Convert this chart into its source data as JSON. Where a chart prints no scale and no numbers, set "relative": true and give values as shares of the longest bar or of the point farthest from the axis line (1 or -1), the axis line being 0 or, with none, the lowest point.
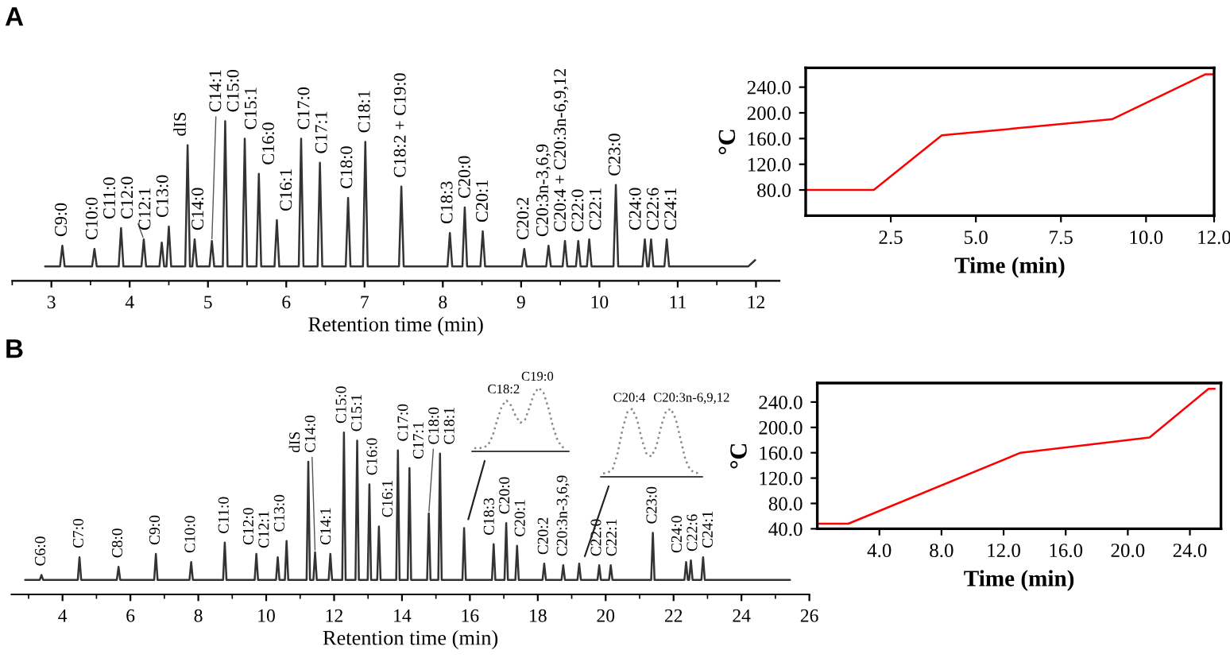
{
  "chart_data": [
    {
      "type": "line",
      "title": "A",
      "xlabel": "Retention time (min)",
      "relative": true,
      "xlim": [
        2.5,
        12.3
      ],
      "xticks": [
        3,
        4,
        5,
        6,
        7,
        8,
        9,
        10,
        11,
        12
      ],
      "tick_labels": "x",
      "grid": false,
      "marker": "none",
      "line_style": "solid",
      "series": [
        {
          "color": "#333333",
          "x": [
            2.92,
            3.11,
            3.14,
            3.17,
            3.52,
            3.55,
            3.58,
            3.86,
            3.89,
            3.92,
            4.15,
            4.18,
            4.21,
            4.38,
            4.41,
            4.44,
            4.47,
            4.5,
            4.53,
            4.71,
            4.74,
            4.77,
            4.8,
            4.83,
            4.86,
            5.02,
            5.05,
            5.08,
            5.19,
            5.22,
            5.25,
            5.44,
            5.47,
            5.5,
            5.62,
            5.65,
            5.68,
            5.85,
            5.88,
            5.91,
            6.16,
            6.19,
            6.22,
            6.4,
            6.43,
            6.46,
            6.76,
            6.79,
            6.82,
            6.98,
            7.01,
            7.04,
            7.44,
            7.47,
            7.5,
            8.06,
            8.09,
            8.12,
            8.25,
            8.28,
            8.31,
            8.48,
            8.51,
            8.54,
            9.01,
            9.04,
            9.07,
            9.32,
            9.35,
            9.38,
            9.53,
            9.56,
            9.59,
            9.7,
            9.73,
            9.76,
            9.84,
            9.87,
            9.9,
            10.18,
            10.21,
            10.24,
            10.55,
            10.58,
            10.61,
            10.63,
            10.66,
            10.69,
            10.83,
            10.86,
            10.89,
            11.9,
            11.99
          ],
          "values": [
            0.09,
            0.09,
            0.22,
            0.09,
            0.09,
            0.2,
            0.09,
            0.09,
            0.33,
            0.09,
            0.09,
            0.26,
            0.09,
            0.09,
            0.24,
            0.09,
            0.09,
            0.34,
            0.09,
            0.09,
            0.85,
            0.09,
            0.09,
            0.26,
            0.09,
            0.09,
            0.25,
            0.09,
            0.09,
            1.0,
            0.09,
            0.09,
            0.89,
            0.09,
            0.09,
            0.67,
            0.09,
            0.09,
            0.38,
            0.09,
            0.09,
            0.89,
            0.09,
            0.09,
            0.74,
            0.09,
            0.09,
            0.52,
            0.09,
            0.09,
            0.87,
            0.09,
            0.09,
            0.59,
            0.09,
            0.09,
            0.3,
            0.09,
            0.09,
            0.46,
            0.09,
            0.09,
            0.31,
            0.09,
            0.09,
            0.2,
            0.09,
            0.09,
            0.22,
            0.09,
            0.09,
            0.25,
            0.09,
            0.09,
            0.25,
            0.09,
            0.09,
            0.26,
            0.09,
            0.09,
            0.6,
            0.09,
            0.09,
            0.26,
            0.09,
            0.09,
            0.26,
            0.09,
            0.09,
            0.26,
            0.09,
            0.09,
            0.13
          ]
        }
      ],
      "annotations": [
        {
          "text": "C9:0",
          "x": 3.14,
          "y": 0.22
        },
        {
          "text": "C10:0",
          "x": 3.55,
          "y": 0.2
        },
        {
          "text": "C11:0",
          "x": 3.89,
          "y": 0.33
        },
        {
          "text": "C12:0",
          "x": 4.18,
          "y": 0.26
        },
        {
          "text": "C12:1",
          "x": 4.41,
          "y": 0.24
        },
        {
          "text": "C13:0",
          "x": 4.5,
          "y": 0.34
        },
        {
          "text": "dIS",
          "x": 4.74,
          "y": 0.85
        },
        {
          "text": "C14:0",
          "x": 4.83,
          "y": 0.26
        },
        {
          "text": "C14:1",
          "x": 5.05,
          "y": 0.25
        },
        {
          "text": "C15:0",
          "x": 5.22,
          "y": 1.0
        },
        {
          "text": "C15:1",
          "x": 5.47,
          "y": 0.89
        },
        {
          "text": "C16:0",
          "x": 5.65,
          "y": 0.67
        },
        {
          "text": "C16:1",
          "x": 5.88,
          "y": 0.38
        },
        {
          "text": "C17:0",
          "x": 6.19,
          "y": 0.89
        },
        {
          "text": "C17:1",
          "x": 6.43,
          "y": 0.74
        },
        {
          "text": "C18:0",
          "x": 6.79,
          "y": 0.52
        },
        {
          "text": "C18:1",
          "x": 7.01,
          "y": 0.87
        },
        {
          "text": "C18:2 + C19:0",
          "x": 7.47,
          "y": 0.59
        },
        {
          "text": "C18:3",
          "x": 8.09,
          "y": 0.3
        },
        {
          "text": "C20:0",
          "x": 8.28,
          "y": 0.46
        },
        {
          "text": "C20:1",
          "x": 8.51,
          "y": 0.31
        },
        {
          "text": "C20:2",
          "x": 9.04,
          "y": 0.2
        },
        {
          "text": "C20:3n-3,6,9",
          "x": 9.35,
          "y": 0.22
        },
        {
          "text": "C20:4 + C20:3n-6,9,12",
          "x": 9.56,
          "y": 0.25
        },
        {
          "text": "C22:0",
          "x": 9.73,
          "y": 0.25
        },
        {
          "text": "C22:1",
          "x": 9.87,
          "y": 0.26
        },
        {
          "text": "C23:0",
          "x": 10.21,
          "y": 0.6
        },
        {
          "text": "C24:0",
          "x": 10.58,
          "y": 0.26
        },
        {
          "text": "C22:6",
          "x": 10.66,
          "y": 0.26
        },
        {
          "text": "C24:1",
          "x": 10.86,
          "y": 0.26
        }
      ]
    },
    {
      "type": "line",
      "xlabel": "Time (min)",
      "ylabel": "°C",
      "xlim": [
        0,
        12
      ],
      "ylim": [
        40,
        270
      ],
      "xticks": [
        {
          "value": 2.5,
          "label": "2.5"
        },
        {
          "value": 5,
          "label": "5.0"
        },
        {
          "value": 7.5,
          "label": "7.5"
        },
        {
          "value": 10,
          "label": "10.0"
        },
        {
          "value": 12,
          "label": "12.0"
        }
      ],
      "yticks": [
        {
          "value": 80,
          "label": "80.0"
        },
        {
          "value": 120,
          "label": "120.0"
        },
        {
          "value": 160,
          "label": "160.0"
        },
        {
          "value": 200,
          "label": "200.0"
        },
        {
          "value": 240,
          "label": "240.0"
        }
      ],
      "grid": false,
      "marker": "none",
      "line_style": "solid",
      "series": [
        {
          "color": "#ff0000",
          "x": [
            0,
            2,
            4,
            9,
            11.75,
            12
          ],
          "values": [
            80,
            80,
            165,
            190,
            260,
            260
          ]
        }
      ]
    },
    {
      "type": "line",
      "title": "B",
      "xlabel": "Retention time (min)",
      "relative": true,
      "xlim": [
        2.5,
        26
      ],
      "xticks": [
        4,
        6,
        8,
        10,
        12,
        14,
        16,
        18,
        20,
        22,
        24,
        26
      ],
      "tick_labels": "x",
      "grid": false,
      "marker": "none",
      "line_style": "solid",
      "series": [
        {
          "color": "#333333",
          "x": [
            2.9,
            3.33,
            3.38,
            3.43,
            4.45,
            4.5,
            4.55,
            5.6,
            5.65,
            5.7,
            6.7,
            6.75,
            6.8,
            7.74,
            7.79,
            7.84,
            8.73,
            8.78,
            8.83,
            9.66,
            9.71,
            9.76,
            10.29,
            10.34,
            10.39,
            10.55,
            10.6,
            10.65,
            11.19,
            11.24,
            11.29,
            11.39,
            11.44,
            11.49,
            11.84,
            11.89,
            11.94,
            12.24,
            12.29,
            12.34,
            12.63,
            12.68,
            12.73,
            12.99,
            13.04,
            13.09,
            13.27,
            13.32,
            13.37,
            13.83,
            13.88,
            13.93,
            14.17,
            14.22,
            14.27,
            14.74,
            14.79,
            14.84,
            15.07,
            15.12,
            15.17,
            15.78,
            15.83,
            15.88,
            16.65,
            16.7,
            16.75,
            17.02,
            17.07,
            17.12,
            17.34,
            17.39,
            17.44,
            18.14,
            18.19,
            18.24,
            18.7,
            18.75,
            18.8,
            19.17,
            19.22,
            19.27,
            19.76,
            19.81,
            19.86,
            20.1,
            20.15,
            20.2,
            21.34,
            21.39,
            21.44,
            22.32,
            22.37,
            22.42,
            22.46,
            22.51,
            22.56,
            22.82,
            22.87,
            22.92,
            25.43
          ],
          "values": [
            0.09,
            0.09,
            0.12,
            0.09,
            0.09,
            0.23,
            0.09,
            0.09,
            0.17,
            0.09,
            0.09,
            0.25,
            0.09,
            0.09,
            0.2,
            0.09,
            0.09,
            0.32,
            0.09,
            0.09,
            0.25,
            0.09,
            0.09,
            0.23,
            0.09,
            0.09,
            0.33,
            0.09,
            0.09,
            0.82,
            0.09,
            0.09,
            0.26,
            0.09,
            0.09,
            0.25,
            0.09,
            0.09,
            1.0,
            0.09,
            0.09,
            0.95,
            0.09,
            0.09,
            0.68,
            0.09,
            0.09,
            0.42,
            0.09,
            0.09,
            0.89,
            0.09,
            0.09,
            0.78,
            0.09,
            0.09,
            0.5,
            0.09,
            0.09,
            0.87,
            0.09,
            0.09,
            0.41,
            0.09,
            0.09,
            0.31,
            0.09,
            0.09,
            0.44,
            0.09,
            0.09,
            0.3,
            0.09,
            0.09,
            0.19,
            0.09,
            0.09,
            0.18,
            0.09,
            0.09,
            0.19,
            0.09,
            0.09,
            0.18,
            0.09,
            0.09,
            0.18,
            0.09,
            0.09,
            0.38,
            0.09,
            0.09,
            0.2,
            0.09,
            0.09,
            0.21,
            0.09,
            0.09,
            0.23,
            0.09,
            0.09
          ]
        }
      ],
      "annotations": [
        {
          "text": "C6:0",
          "x": 3.38,
          "y": 0.12
        },
        {
          "text": "C7:0",
          "x": 4.5,
          "y": 0.23
        },
        {
          "text": "C8:0",
          "x": 5.65,
          "y": 0.17
        },
        {
          "text": "C9:0",
          "x": 6.75,
          "y": 0.25
        },
        {
          "text": "C10:0",
          "x": 7.79,
          "y": 0.2
        },
        {
          "text": "C11:0",
          "x": 8.78,
          "y": 0.32
        },
        {
          "text": "C12:0",
          "x": 9.71,
          "y": 0.25
        },
        {
          "text": "C12:1",
          "x": 10.34,
          "y": 0.23
        },
        {
          "text": "C13:0",
          "x": 10.6,
          "y": 0.33
        },
        {
          "text": "dIS",
          "x": 11.24,
          "y": 0.82
        },
        {
          "text": "C14:0",
          "x": 11.44,
          "y": 0.26
        },
        {
          "text": "C14:1",
          "x": 11.89,
          "y": 0.25
        },
        {
          "text": "C15:0",
          "x": 12.29,
          "y": 1.0
        },
        {
          "text": "C15:1",
          "x": 12.68,
          "y": 0.95
        },
        {
          "text": "C16:0",
          "x": 13.04,
          "y": 0.68
        },
        {
          "text": "C16:1",
          "x": 13.32,
          "y": 0.42
        },
        {
          "text": "C17:0",
          "x": 13.88,
          "y": 0.89
        },
        {
          "text": "C17:1",
          "x": 14.22,
          "y": 0.78
        },
        {
          "text": "C18:0",
          "x": 14.79,
          "y": 0.5
        },
        {
          "text": "C18:1",
          "x": 15.12,
          "y": 0.87
        },
        {
          "text": "C18:3",
          "x": 16.7,
          "y": 0.31
        },
        {
          "text": "C20:0",
          "x": 17.07,
          "y": 0.44
        },
        {
          "text": "C20:1",
          "x": 17.39,
          "y": 0.3
        },
        {
          "text": "C20:2",
          "x": 18.19,
          "y": 0.19
        },
        {
          "text": "C20:3n-3,6,9",
          "x": 18.75,
          "y": 0.18
        },
        {
          "text": "C22:0",
          "x": 19.81,
          "y": 0.18
        },
        {
          "text": "C22:1",
          "x": 20.15,
          "y": 0.18
        },
        {
          "text": "C23:0",
          "x": 21.39,
          "y": 0.38
        },
        {
          "text": "C24:0",
          "x": 22.37,
          "y": 0.2
        },
        {
          "text": "C22:6",
          "x": 22.51,
          "y": 0.21
        },
        {
          "text": "C24:1",
          "x": 22.87,
          "y": 0.23
        }
      ]
    },
    {
      "type": "line",
      "xlabel": "Time (min)",
      "ylabel": "°C",
      "xlim": [
        0,
        26
      ],
      "ylim": [
        40,
        270
      ],
      "xticks": [
        {
          "value": 4,
          "label": "4.0"
        },
        {
          "value": 8,
          "label": "8.0"
        },
        {
          "value": 12,
          "label": "12.0"
        },
        {
          "value": 16,
          "label": "16.0"
        },
        {
          "value": 20,
          "label": "20.0"
        },
        {
          "value": 24,
          "label": "24.0"
        }
      ],
      "yticks": [
        {
          "value": 40,
          "label": "40.0"
        },
        {
          "value": 80,
          "label": "80.0"
        },
        {
          "value": 120,
          "label": "120.0"
        },
        {
          "value": 160,
          "label": "160.0"
        },
        {
          "value": 200,
          "label": "200.0"
        },
        {
          "value": 240,
          "label": "240.0"
        }
      ],
      "grid": false,
      "marker": "none",
      "line_style": "solid",
      "series": [
        {
          "color": "#ff0000",
          "x": [
            0,
            2,
            13.1,
            21.4,
            25.2,
            25.6
          ],
          "values": [
            48,
            48,
            160,
            184,
            261,
            261
          ]
        }
      ]
    },
    {
      "type": "line",
      "relative": true,
      "tick_labels": false,
      "grid": false,
      "marker": "none",
      "line_style": "dotted",
      "categories": [
        null,
        null,
        null,
        null,
        null,
        null,
        null,
        null,
        null,
        null,
        null,
        null,
        null,
        null,
        null,
        null,
        null,
        null,
        null,
        null,
        null
      ],
      "series": [
        {
          "color": "#888888",
          "values": [
            0.05,
            0.05,
            0.06,
            0.1,
            0.25,
            0.5,
            0.72,
            0.8,
            0.72,
            0.55,
            0.45,
            0.5,
            0.7,
            0.92,
            1.0,
            0.92,
            0.7,
            0.4,
            0.18,
            0.07,
            0.05
          ]
        }
      ],
      "annotations": [
        "C18:2",
        "C19:0"
      ]
    },
    {
      "type": "line",
      "relative": true,
      "tick_labels": false,
      "grid": false,
      "marker": "none",
      "line_style": "dotted",
      "categories": [
        null,
        null,
        null,
        null,
        null,
        null,
        null,
        null,
        null,
        null,
        null,
        null,
        null,
        null,
        null,
        null,
        null,
        null,
        null,
        null,
        null
      ],
      "series": [
        {
          "color": "#888888",
          "values": [
            0.05,
            0.06,
            0.12,
            0.35,
            0.7,
            0.95,
            1.0,
            0.85,
            0.55,
            0.33,
            0.3,
            0.45,
            0.75,
            0.97,
            1.0,
            0.85,
            0.55,
            0.25,
            0.1,
            0.06,
            0.05
          ]
        }
      ],
      "annotations": [
        "C20:4",
        "C20:3n-6,9,12"
      ]
    }
  ]
}
